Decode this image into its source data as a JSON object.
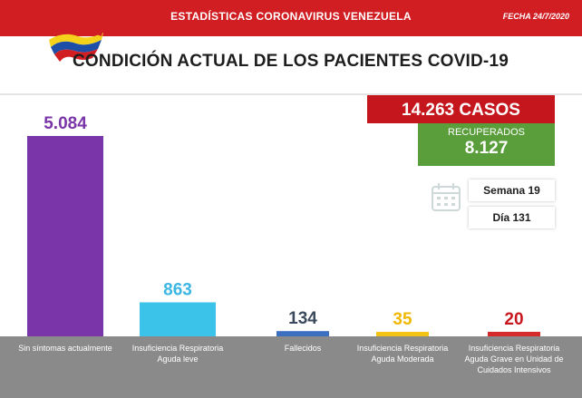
{
  "header": {
    "title": "ESTADÍSTICAS CORONAVIRUS VENEZUELA",
    "date": "FECHA 24/7/2020"
  },
  "headline": "CONDICIÓN ACTUAL DE LOS PACIENTES COVID-19",
  "summary": {
    "cases": "14.263 CASOS",
    "recovered_label": "RECUPERADOS",
    "recovered_value": "8.127",
    "week": "Semana 19",
    "day": "Día 131"
  },
  "icons": [
    "venezuela-flag-logo",
    "calendar-icon"
  ],
  "colors": {
    "topbar": "#d01e23",
    "cases": "#c4161c",
    "recovered": "#5a9e3b",
    "footer": "#8a8a8a"
  },
  "chart_data": {
    "type": "bar",
    "categories": [
      "Sin síntomas actualmente",
      "Insuficiencia Respiratoria Aguda leve",
      "Fallecidos",
      "Insuficiencia Respiratoria Aguda Moderada",
      "Insuficiencia Respiratoria Aguda Grave en Unidad de Cuidados Intensivos"
    ],
    "values": [
      5084,
      863,
      134,
      35,
      20
    ],
    "value_labels": [
      "5.084",
      "863",
      "134",
      "35",
      "20"
    ],
    "colors": [
      "#7a35a8",
      "#3cc3ea",
      "#3d6fc0",
      "#f3c316",
      "#d62b2b"
    ],
    "label_colors": [
      "#7a35a8",
      "#3cb6e3",
      "#3a4a5c",
      "#f0b800",
      "#c8161c"
    ],
    "title": "",
    "xlabel": "",
    "ylabel": "",
    "ylim": [
      0,
      5084
    ],
    "grid": false
  }
}
